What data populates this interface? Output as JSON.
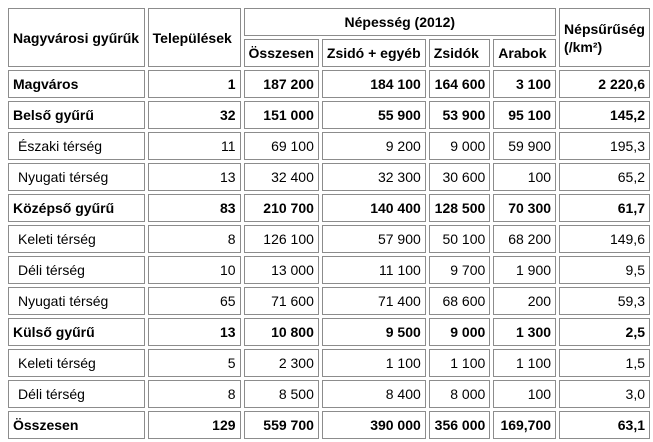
{
  "table": {
    "headers": {
      "ring": "Nagyvárosi gyűrűk",
      "settlements": "Települések",
      "population_group": "Népesség (2012)",
      "total": "Összesen",
      "jewish_other": "Zsidó + egyéb",
      "jewish": "Zsidók",
      "arab": "Arabok",
      "density_line1": "Népsűrűség",
      "density_line2": "(/km²)"
    },
    "rows": [
      {
        "name": "Magváros",
        "bold": true,
        "settlements": "1",
        "total": "187 200",
        "jewish_other": "184 100",
        "jewish": "164 600",
        "arab": "3 100",
        "density": "2 220,6"
      },
      {
        "name": "Belső gyűrű",
        "bold": true,
        "settlements": "32",
        "total": "151 000",
        "jewish_other": "55 900",
        "jewish": "53 900",
        "arab": "95 100",
        "density": "145,2"
      },
      {
        "name": "Északi térség",
        "bold": false,
        "settlements": "11",
        "total": "69 100",
        "jewish_other": "9 200",
        "jewish": "9 000",
        "arab": "59 900",
        "density": "195,3"
      },
      {
        "name": "Nyugati térség",
        "bold": false,
        "settlements": "13",
        "total": "32 400",
        "jewish_other": "32 300",
        "jewish": "30 600",
        "arab": "100",
        "density": "65,2"
      },
      {
        "name": "Középső gyűrű",
        "bold": true,
        "settlements": "83",
        "total": "210 700",
        "jewish_other": "140 400",
        "jewish": "128 500",
        "arab": "70 300",
        "density": "61,7"
      },
      {
        "name": "Keleti térség",
        "bold": false,
        "settlements": "8",
        "total": "126 100",
        "jewish_other": "57 900",
        "jewish": "50 100",
        "arab": "68 200",
        "density": "149,6"
      },
      {
        "name": "Déli térség",
        "bold": false,
        "settlements": "10",
        "total": "13 000",
        "jewish_other": "11 100",
        "jewish": "9 700",
        "arab": "1 900",
        "density": "9,5"
      },
      {
        "name": "Nyugati térség",
        "bold": false,
        "settlements": "65",
        "total": "71 600",
        "jewish_other": "71 400",
        "jewish": "68 600",
        "arab": "200",
        "density": "59,3"
      },
      {
        "name": "Külső gyűrű",
        "bold": true,
        "settlements": "13",
        "total": "10 800",
        "jewish_other": "9 500",
        "jewish": "9 000",
        "arab": "1 300",
        "density": "2,5"
      },
      {
        "name": "Keleti térség",
        "bold": false,
        "settlements": "5",
        "total": "2 300",
        "jewish_other": "1 100",
        "jewish": "1 100",
        "arab": "1 100",
        "density": "1,5"
      },
      {
        "name": "Déli térség",
        "bold": false,
        "settlements": "8",
        "total": "8 500",
        "jewish_other": "8 400",
        "jewish": "8 000",
        "arab": "100",
        "density": "3,0"
      },
      {
        "name": "Összesen",
        "bold": true,
        "settlements": "129",
        "total": "559 700",
        "jewish_other": "390 000",
        "jewish": "356 000",
        "arab": "169,700",
        "density": "63,1"
      }
    ]
  }
}
